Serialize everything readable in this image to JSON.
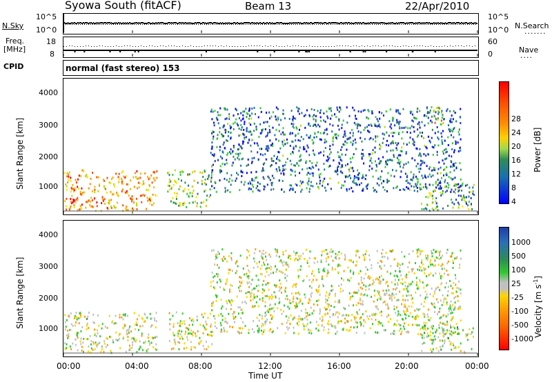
{
  "header": {
    "station": "Syowa South (fitACF)",
    "beam": "Beam 13",
    "date": "22/Apr/2010"
  },
  "noise_panel": {
    "left_label": "N.Sky",
    "right_label": "N.Search",
    "left_ticks": [
      "10^5",
      "10^0"
    ],
    "right_ticks": [
      "10^5",
      "10^0"
    ]
  },
  "freq_panel": {
    "left_label_1": "Freq.",
    "left_label_2": "[MHz]",
    "right_label": "Nave",
    "left_ticks": [
      "18",
      "8"
    ],
    "right_ticks": [
      "60",
      "0"
    ]
  },
  "cpid_panel": {
    "label": "CPID",
    "value": "normal (fast stereo) 153"
  },
  "power_panel": {
    "ylabel": "Slant Range [km]",
    "yticks": [
      "4000",
      "3000",
      "2000",
      "1000"
    ],
    "colorbar_label": "Power [dB]",
    "colorbar_ticks": [
      "28",
      "24",
      "20",
      "16",
      "12",
      "8",
      "4"
    ],
    "colors": [
      "#ff0000",
      "#ff4a00",
      "#ff8c00",
      "#f5b400",
      "#ffe000",
      "#b4dd00",
      "#32c832",
      "#2e8b57",
      "#1a6fb0",
      "#1830c8",
      "#0000ff"
    ]
  },
  "velocity_panel": {
    "ylabel": "Slant Range [km]",
    "yticks": [
      "4000",
      "3000",
      "2000",
      "1000"
    ],
    "colorbar_label": "Velocity [m s",
    "colorbar_sup": "-1",
    "colorbar_ticks": [
      "1000",
      "500",
      "100",
      "25",
      "-25",
      "-100",
      "-500",
      "-1000"
    ],
    "colors": [
      "#1e3ca8",
      "#2a6fb8",
      "#2e8b57",
      "#32c832",
      "#c0c0c0",
      "#ffd400",
      "#ff9a00",
      "#ff6a00",
      "#ff0000"
    ]
  },
  "xaxis": {
    "label": "Time UT",
    "ticks": [
      "00:00",
      "04:00",
      "08:00",
      "12:00",
      "16:00",
      "20:00",
      "00:00"
    ]
  },
  "chart_data": [
    {
      "type": "heatmap",
      "title": "Syowa South (fitACF) Beam 13 22/Apr/2010",
      "xlabel": "Time UT",
      "ylabel": "Slant Range [km]",
      "colorbar": "Power [dB]",
      "xlim": [
        0,
        24
      ],
      "ylim": [
        180,
        4500
      ],
      "clim": [
        0,
        30
      ],
      "regions": [
        {
          "t": [
            0.0,
            5.4
          ],
          "range": [
            300,
            1600
          ],
          "value": 22
        },
        {
          "t": [
            0.0,
            2.2
          ],
          "range": [
            550,
            700
          ],
          "value": 28
        },
        {
          "t": [
            6.0,
            8.6
          ],
          "range": [
            400,
            1600
          ],
          "value": 14
        },
        {
          "t": [
            8.5,
            23.0
          ],
          "range": [
            900,
            3600
          ],
          "value": 6
        },
        {
          "t": [
            20.7,
            23.8
          ],
          "range": [
            300,
            1200
          ],
          "value": 10
        },
        {
          "t": [
            21.3,
            21.9
          ],
          "range": [
            3100,
            3600
          ],
          "value": 20
        }
      ]
    },
    {
      "type": "heatmap",
      "title": "",
      "xlabel": "Time UT",
      "ylabel": "Slant Range [km]",
      "colorbar": "Velocity [m s-1]",
      "xlim": [
        0,
        24
      ],
      "ylim": [
        180,
        4500
      ],
      "clim": [
        -1000,
        1000
      ],
      "regions": [
        {
          "t": [
            0.0,
            5.4
          ],
          "range": [
            300,
            1600
          ],
          "value": -50
        },
        {
          "t": [
            6.0,
            8.6
          ],
          "range": [
            400,
            1600
          ],
          "value": -100
        },
        {
          "t": [
            8.5,
            23.0
          ],
          "range": [
            900,
            3600
          ],
          "value": -80
        },
        {
          "t": [
            20.7,
            23.8
          ],
          "range": [
            300,
            1200
          ],
          "value": 50
        },
        {
          "t": [
            21.3,
            21.9
          ],
          "range": [
            3100,
            3600
          ],
          "value": 100
        }
      ]
    }
  ]
}
